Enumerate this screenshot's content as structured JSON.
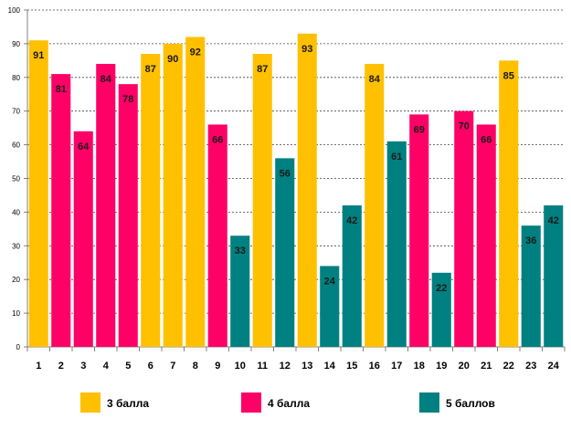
{
  "chart_data": {
    "type": "bar",
    "title": "",
    "xlabel": "",
    "ylabel": "",
    "ylim": [
      0,
      100
    ],
    "yticks": [
      0,
      10,
      20,
      30,
      40,
      50,
      60,
      70,
      80,
      90,
      100
    ],
    "grid": true,
    "categories": [
      "1",
      "2",
      "3",
      "4",
      "5",
      "6",
      "7",
      "8",
      "9",
      "10",
      "11",
      "12",
      "13",
      "14",
      "15",
      "16",
      "17",
      "18",
      "19",
      "20",
      "21",
      "22",
      "23",
      "24"
    ],
    "values": [
      91,
      81,
      64,
      84,
      78,
      87,
      90,
      92,
      66,
      33,
      87,
      56,
      93,
      24,
      42,
      84,
      61,
      69,
      22,
      70,
      66,
      85,
      36,
      42
    ],
    "groups": [
      "g3",
      "g4",
      "g4",
      "g4",
      "g4",
      "g3",
      "g3",
      "g3",
      "g4",
      "g5",
      "g3",
      "g5",
      "g3",
      "g5",
      "g5",
      "g3",
      "g5",
      "g4",
      "g5",
      "g4",
      "g4",
      "g3",
      "g5",
      "g5"
    ],
    "legend": [
      {
        "key": "g3",
        "label": "3 балла",
        "color": "#FFC000"
      },
      {
        "key": "g4",
        "label": "4 балла",
        "color": "#FF0066"
      },
      {
        "key": "g5",
        "label": "5 баллов",
        "color": "#008080"
      }
    ],
    "legend_position": "bottom"
  }
}
